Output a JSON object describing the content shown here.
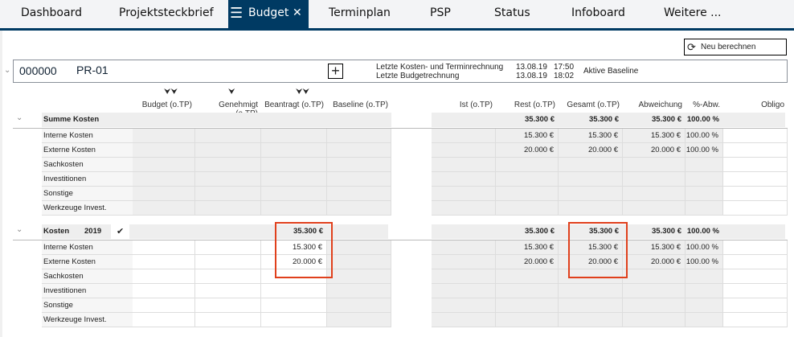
{
  "tabs": [
    {
      "label": "Dashboard"
    },
    {
      "label": "Projektsteckbrief"
    },
    {
      "label": "Budget",
      "active": true
    },
    {
      "label": "Terminplan"
    },
    {
      "label": "PSP"
    },
    {
      "label": "Status"
    },
    {
      "label": "Infoboard"
    },
    {
      "label": "Weitere ..."
    }
  ],
  "recalc_label": "Neu berechnen",
  "project": {
    "number": "000000",
    "name": "PR-01",
    "last_cost_label": "Letzte Kosten- und Terminrechnung",
    "last_cost_date": "13.08.19",
    "last_cost_time": "17:50",
    "last_budget_label": "Letzte Budgetrechnung",
    "last_budget_date": "13.08.19",
    "last_budget_time": "18:02",
    "baseline_label": "Aktive Baseline"
  },
  "columns": [
    "Budget (o.TP)",
    "Genehmigt (o.TP)",
    "Beantragt (o.TP)",
    "Baseline (o.TP)",
    "Ist (o.TP)",
    "Rest (o.TP)",
    "Gesamt (o.TP)",
    "Abweichung",
    "%-Abw.",
    "Obligo"
  ],
  "summary": {
    "title": "Summe Kosten",
    "rest": "35.300 €",
    "gesamt": "35.300 €",
    "abweichung": "35.300 €",
    "pct": "100.00 %",
    "rows": [
      {
        "label": "Interne Kosten",
        "rest": "15.300 €",
        "gesamt": "15.300 €",
        "abweichung": "15.300 €",
        "pct": "100.00 %"
      },
      {
        "label": "Externe Kosten",
        "rest": "20.000 €",
        "gesamt": "20.000 €",
        "abweichung": "20.000 €",
        "pct": "100.00 %"
      },
      {
        "label": "Sachkosten"
      },
      {
        "label": "Investitionen"
      },
      {
        "label": "Sonstige"
      },
      {
        "label": "Werkzeuge Invest."
      }
    ]
  },
  "kosten": {
    "title": "Kosten",
    "year": "2019",
    "beantragt": "35.300 €",
    "rest": "35.300 €",
    "gesamt": "35.300 €",
    "abweichung": "35.300 €",
    "pct": "100.00 %",
    "rows": [
      {
        "label": "Interne Kosten",
        "beantragt": "15.300 €",
        "rest": "15.300 €",
        "gesamt": "15.300 €",
        "abweichung": "15.300 €",
        "pct": "100.00 %"
      },
      {
        "label": "Externe Kosten",
        "beantragt": "20.000 €",
        "rest": "20.000 €",
        "gesamt": "20.000 €",
        "abweichung": "20.000 €",
        "pct": "100.00 %"
      },
      {
        "label": "Sachkosten"
      },
      {
        "label": "Investitionen"
      },
      {
        "label": "Sonstige"
      },
      {
        "label": "Werkzeuge Invest."
      }
    ]
  },
  "colors": {
    "brand": "#003a63",
    "highlight": "#e0401c"
  }
}
